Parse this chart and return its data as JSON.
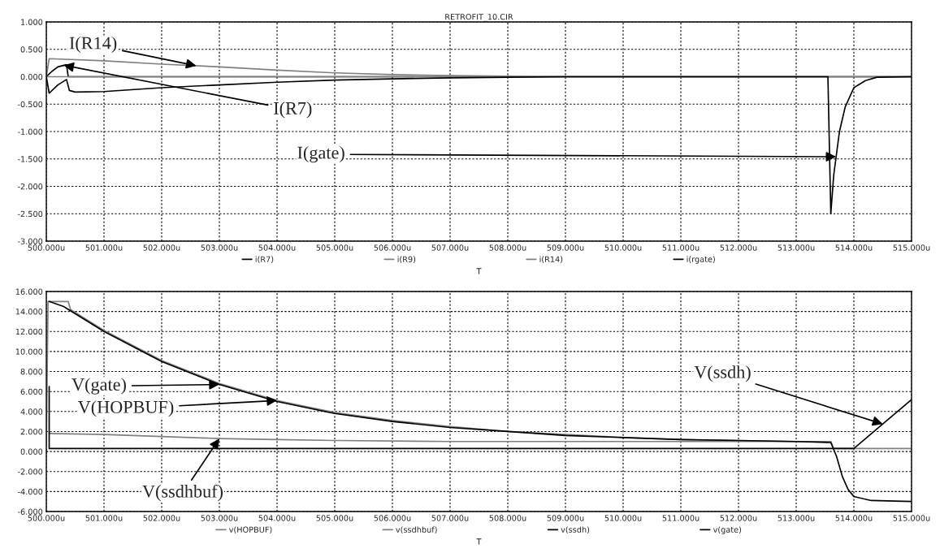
{
  "chart_data": [
    {
      "type": "line",
      "title": "RETROFIT_10.CIR",
      "xlabel": "T",
      "grid": true,
      "legend": "bottom",
      "xlim": [
        500,
        515
      ],
      "xticks": [
        {
          "value": 500,
          "label": "500.000u"
        },
        {
          "value": 501,
          "label": "501.000u"
        },
        {
          "value": 502,
          "label": "502.000u"
        },
        {
          "value": 503,
          "label": "503.000u"
        },
        {
          "value": 504,
          "label": "504.000u"
        },
        {
          "value": 505,
          "label": "505.000u"
        },
        {
          "value": 506,
          "label": "506.000u"
        },
        {
          "value": 507,
          "label": "507.000u"
        },
        {
          "value": 508,
          "label": "508.000u"
        },
        {
          "value": 509,
          "label": "509.000u"
        },
        {
          "value": 510,
          "label": "510.000u"
        },
        {
          "value": 511,
          "label": "511.000u"
        },
        {
          "value": 512,
          "label": "512.000u"
        },
        {
          "value": 513,
          "label": "513.000u"
        },
        {
          "value": 514,
          "label": "514.000u"
        },
        {
          "value": 515,
          "label": "515.000u"
        }
      ],
      "ylim": [
        -3,
        1
      ],
      "yticks": [
        {
          "value": -3,
          "label": "-3.000"
        },
        {
          "value": -2.5,
          "label": "-2.500"
        },
        {
          "value": -2,
          "label": "-2.000"
        },
        {
          "value": -1.5,
          "label": "-1.500"
        },
        {
          "value": -1,
          "label": "-1.000"
        },
        {
          "value": -0.5,
          "label": "-0.500"
        },
        {
          "value": 0,
          "label": "0.000"
        },
        {
          "value": 0.5,
          "label": "0.500"
        },
        {
          "value": 1,
          "label": "1.000"
        }
      ],
      "series": [
        {
          "name": "i(R7)",
          "color": "#000000",
          "x": [
            500,
            500.1,
            500.2,
            500.35,
            500.38,
            515
          ],
          "values": [
            0,
            0.1,
            0.18,
            0.22,
            0,
            0
          ]
        },
        {
          "name": "i(R9)",
          "color": "#808080",
          "x": [
            500,
            515
          ],
          "values": [
            0,
            0
          ]
        },
        {
          "name": "i(R14)",
          "color": "#808080",
          "x": [
            500,
            500.05,
            501,
            502,
            503,
            504,
            505,
            506,
            507,
            508,
            509,
            515
          ],
          "values": [
            0,
            0.33,
            0.29,
            0.23,
            0.18,
            0.12,
            0.07,
            0.04,
            0.02,
            0.01,
            0,
            0
          ]
        },
        {
          "name": "i(rgate)",
          "color": "#000000",
          "x": [
            500,
            500.05,
            500.2,
            500.35,
            500.4,
            500.5,
            501,
            502,
            503,
            504,
            505,
            506,
            507,
            508,
            509,
            513.55,
            513.6,
            513.65,
            513.75,
            513.85,
            514,
            514.2,
            514.4,
            515
          ],
          "values": [
            0,
            -0.3,
            -0.15,
            -0.05,
            -0.25,
            -0.28,
            -0.27,
            -0.2,
            -0.15,
            -0.1,
            -0.06,
            -0.04,
            -0.02,
            -0.01,
            0,
            0,
            -2.5,
            -1.8,
            -1.0,
            -0.55,
            -0.2,
            -0.07,
            -0.01,
            0
          ]
        }
      ],
      "annotations": [
        {
          "text": "I(R14)",
          "x": 502.6,
          "y": 0.2
        },
        {
          "text": "I(R7)",
          "x": 500.3,
          "y": 0.21
        },
        {
          "text": "I(gate)",
          "x": 513.6925,
          "y": -1.46
        }
      ]
    },
    {
      "type": "line",
      "xlabel": "T",
      "grid": true,
      "legend": "bottom",
      "xlim": [
        500,
        515
      ],
      "xticks": [
        {
          "value": 500,
          "label": "500.000u"
        },
        {
          "value": 501,
          "label": "501.000u"
        },
        {
          "value": 502,
          "label": "502.000u"
        },
        {
          "value": 503,
          "label": "503.000u"
        },
        {
          "value": 504,
          "label": "504.000u"
        },
        {
          "value": 505,
          "label": "505.000u"
        },
        {
          "value": 506,
          "label": "506.000u"
        },
        {
          "value": 507,
          "label": "507.000u"
        },
        {
          "value": 508,
          "label": "508.000u"
        },
        {
          "value": 509,
          "label": "509.000u"
        },
        {
          "value": 510,
          "label": "510.000u"
        },
        {
          "value": 511,
          "label": "511.000u"
        },
        {
          "value": 512,
          "label": "512.000u"
        },
        {
          "value": 513,
          "label": "513.000u"
        },
        {
          "value": 514,
          "label": "514.000u"
        },
        {
          "value": 515,
          "label": "515.000u"
        }
      ],
      "ylim": [
        -6,
        16
      ],
      "yticks": [
        {
          "value": -6,
          "label": "-6.000"
        },
        {
          "value": -4,
          "label": "-4.000"
        },
        {
          "value": -2,
          "label": "-2.000"
        },
        {
          "value": 0,
          "label": "0.000"
        },
        {
          "value": 2,
          "label": "2.000"
        },
        {
          "value": 4,
          "label": "4.000"
        },
        {
          "value": 6,
          "label": "6.000"
        },
        {
          "value": 8,
          "label": "8.000"
        },
        {
          "value": 10,
          "label": "10.000"
        },
        {
          "value": 12,
          "label": "12.000"
        },
        {
          "value": 14,
          "label": "14.000"
        },
        {
          "value": 16,
          "label": "16.000"
        }
      ],
      "series": [
        {
          "name": "v(HOPBUF)",
          "color": "#808080",
          "x": [
            500,
            500.03,
            500.38,
            500.42,
            501,
            502,
            503,
            504,
            505,
            506,
            507,
            508,
            509,
            510,
            511,
            512,
            513,
            513.6
          ],
          "values": [
            0.5,
            15,
            15,
            14.2,
            12.1,
            9.1,
            6.8,
            5.1,
            3.9,
            3.1,
            2.5,
            2.0,
            1.7,
            1.4,
            1.2,
            1.1,
            1.0,
            1.0
          ]
        },
        {
          "name": "v(ssdhbuf)",
          "color": "#808080",
          "x": [
            500.05,
            501,
            502,
            503,
            504,
            505,
            507,
            510,
            513.6,
            513.65,
            515
          ],
          "values": [
            1.8,
            1.7,
            1.5,
            1.3,
            1.2,
            1.1,
            1.0,
            1.0,
            1.0,
            0.3,
            0.3
          ]
        },
        {
          "name": "v(ssdh)",
          "color": "#000000",
          "x": [
            500.05,
            500.05,
            514.0,
            515
          ],
          "values": [
            6.5,
            0.3,
            0.3,
            5.2
          ]
        },
        {
          "name": "v(gate)",
          "color": "#000000",
          "x": [
            500.05,
            500.3,
            501,
            502,
            503,
            504,
            505,
            506,
            507,
            508,
            509,
            510,
            511,
            512,
            513,
            513.6,
            513.7,
            513.8,
            513.9,
            514,
            514.3,
            515
          ],
          "values": [
            15,
            14.5,
            12,
            9.0,
            6.7,
            5.0,
            3.8,
            3.0,
            2.4,
            2.0,
            1.6,
            1.4,
            1.2,
            1.1,
            1.0,
            0.9,
            -0.5,
            -2.5,
            -3.8,
            -4.5,
            -4.9,
            -5.0
          ]
        }
      ],
      "annotations": [
        "V(gate)",
        {
          "text": "V(HOPBUF)",
          "x": 504,
          "y": 5.1
        },
        {
          "text": "V(ssdhbuf)",
          "x": 503,
          "y": 1.3
        },
        {
          "text": "V(ssdh)",
          "x": 514.5,
          "y": 2.75
        }
      ]
    }
  ]
}
